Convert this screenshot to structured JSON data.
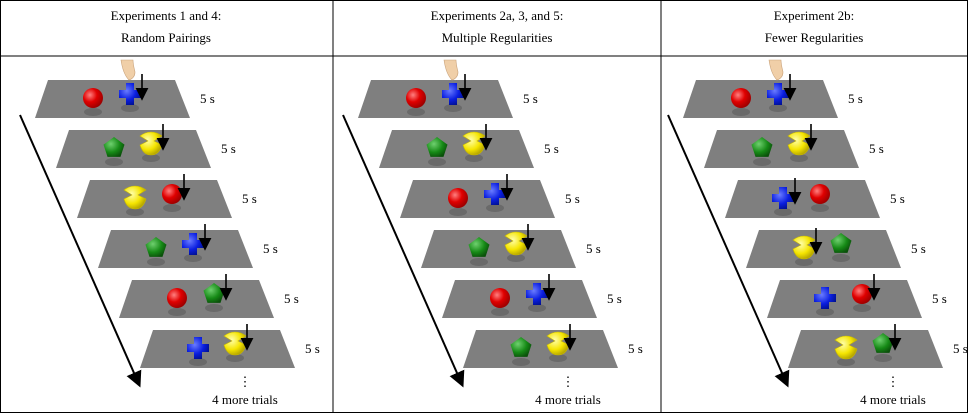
{
  "panels": [
    {
      "title": [
        "Experiments 1 and 4:",
        "Random Pairings"
      ],
      "trials": [
        "5 s",
        "5 s",
        "5 s",
        "5 s",
        "5 s",
        "5 s"
      ],
      "ellipsis": "⋮",
      "more": "4 more trials"
    },
    {
      "title": [
        "Experiments 2a, 3, and 5:",
        "Multiple Regularities"
      ],
      "trials": [
        "5 s",
        "5 s",
        "5 s",
        "5 s",
        "5 s",
        "5 s"
      ],
      "ellipsis": "⋮",
      "more": "4 more trials"
    },
    {
      "title": [
        "Experiment 2b:",
        "Fewer Regularities"
      ],
      "trials": [
        "5 s",
        "5 s",
        "5 s",
        "5 s",
        "5 s",
        "5 s"
      ],
      "ellipsis": "⋮",
      "more": "4 more trials"
    }
  ]
}
